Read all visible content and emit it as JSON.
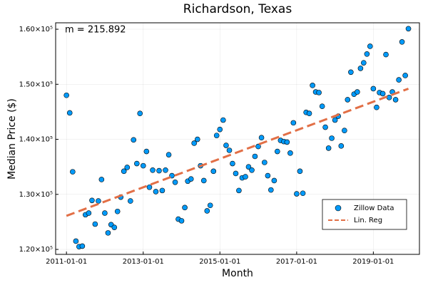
{
  "chart_data": {
    "type": "scatter",
    "title": "Richardson, Texas",
    "x_label": "Month",
    "y_label": "Median Price ($)",
    "annotation": "m = 215.892",
    "xlim": [
      "2010-09-20",
      "2020-03-15"
    ],
    "xticks": [
      "2011-01-01",
      "2013-01-01",
      "2015-01-01",
      "2017-01-01",
      "2019-01-01"
    ],
    "ylim": [
      119100,
      161170
    ],
    "yticks": [
      {
        "value": 120000,
        "label": "1.20×10⁵"
      },
      {
        "value": 130000,
        "label": "1.30×10⁵"
      },
      {
        "value": 140000,
        "label": "1.40×10⁵"
      },
      {
        "value": 150000,
        "label": "1.50×10⁵"
      },
      {
        "value": 160000,
        "label": "1.60×10⁵"
      }
    ],
    "grid": true,
    "legend": "lower right",
    "series": [
      {
        "name": "Zillow Data",
        "color": "#009af9",
        "kind": "scatter",
        "x": [
          "2011-01-01",
          "2011-02-01",
          "2011-03-01",
          "2011-04-01",
          "2011-05-01",
          "2011-06-01",
          "2011-07-01",
          "2011-08-01",
          "2011-09-01",
          "2011-10-01",
          "2011-11-01",
          "2011-12-01",
          "2012-01-01",
          "2012-02-01",
          "2012-03-01",
          "2012-04-01",
          "2012-05-01",
          "2012-06-01",
          "2012-07-01",
          "2012-08-01",
          "2012-09-01",
          "2012-10-01",
          "2012-11-01",
          "2012-12-01",
          "2013-01-01",
          "2013-02-01",
          "2013-03-01",
          "2013-04-01",
          "2013-05-01",
          "2013-06-01",
          "2013-07-01",
          "2013-08-01",
          "2013-09-01",
          "2013-10-01",
          "2013-11-01",
          "2013-12-01",
          "2014-01-01",
          "2014-02-01",
          "2014-03-01",
          "2014-04-01",
          "2014-05-01",
          "2014-06-01",
          "2014-07-01",
          "2014-08-01",
          "2014-09-01",
          "2014-10-01",
          "2014-11-01",
          "2014-12-01",
          "2015-01-01",
          "2015-02-01",
          "2015-03-01",
          "2015-04-01",
          "2015-05-01",
          "2015-06-01",
          "2015-07-01",
          "2015-08-01",
          "2015-09-01",
          "2015-10-01",
          "2015-11-01",
          "2015-12-01",
          "2016-01-01",
          "2016-02-01",
          "2016-03-01",
          "2016-04-01",
          "2016-05-01",
          "2016-06-01",
          "2016-07-01",
          "2016-08-01",
          "2016-09-01",
          "2016-10-01",
          "2016-11-01",
          "2016-12-01",
          "2017-01-01",
          "2017-02-01",
          "2017-03-01",
          "2017-04-01",
          "2017-05-01",
          "2017-06-01",
          "2017-07-01",
          "2017-08-01",
          "2017-09-01",
          "2017-10-01",
          "2017-11-01",
          "2017-12-01",
          "2018-01-01",
          "2018-02-01",
          "2018-03-01",
          "2018-04-01",
          "2018-05-01",
          "2018-06-01",
          "2018-07-01",
          "2018-08-01",
          "2018-09-01",
          "2018-10-01",
          "2018-11-01",
          "2018-12-01",
          "2019-01-01",
          "2019-02-01",
          "2019-03-01",
          "2019-04-01",
          "2019-05-01",
          "2019-06-01",
          "2019-07-01",
          "2019-08-01",
          "2019-09-01",
          "2019-10-01",
          "2019-11-01",
          "2019-12-01"
        ],
        "values": [
          148000,
          144800,
          134100,
          121500,
          120500,
          120600,
          126300,
          126600,
          128900,
          124600,
          128800,
          132700,
          126600,
          123000,
          124500,
          124000,
          126900,
          129500,
          134200,
          134900,
          128800,
          139900,
          135600,
          144700,
          135200,
          137800,
          131300,
          134400,
          130500,
          134300,
          130700,
          134400,
          137200,
          133400,
          132200,
          125500,
          125200,
          127600,
          132400,
          132800,
          139300,
          140000,
          135200,
          132500,
          127000,
          128000,
          134200,
          140700,
          141800,
          143500,
          138900,
          138000,
          135600,
          133800,
          130700,
          133000,
          133200,
          135000,
          134400,
          136900,
          138700,
          140300,
          135800,
          133400,
          130800,
          132500,
          137800,
          139800,
          139600,
          139500,
          137500,
          143000,
          130100,
          134200,
          130200,
          144900,
          144700,
          149800,
          148600,
          148500,
          146000,
          142200,
          138400,
          140200,
          143500,
          144200,
          138800,
          141600,
          147200,
          152200,
          148200,
          148600,
          152900,
          153900,
          155500,
          156900,
          149200,
          145800,
          148500,
          148300,
          155400,
          147600,
          148600,
          147200,
          150800,
          157700,
          151600,
          160100
        ]
      },
      {
        "name": "Lin. Reg",
        "color": "#e26f46",
        "kind": "line",
        "dashed": true,
        "x": [
          "2011-01-01",
          "2019-12-01"
        ],
        "values": [
          126100,
          149200
        ]
      }
    ]
  }
}
